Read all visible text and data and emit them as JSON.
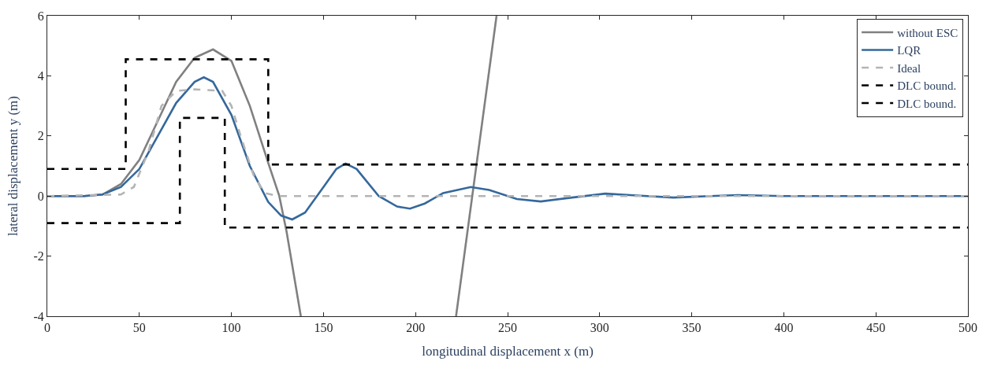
{
  "chart_data": {
    "type": "line",
    "xlabel": "longitudinal displacement x (m)",
    "ylabel": "lateral displacement y (m)",
    "xlim": [
      0,
      500
    ],
    "ylim": [
      -4,
      6
    ],
    "xticks": [
      0,
      50,
      100,
      150,
      200,
      250,
      300,
      350,
      400,
      450,
      500
    ],
    "yticks": [
      -4,
      -2,
      0,
      2,
      4,
      6
    ],
    "grid": false,
    "legend": "top right",
    "marker": "none",
    "series": [
      {
        "name": "without ESC",
        "color": "#808080",
        "line_style": "solid",
        "x": [
          0,
          20,
          30,
          40,
          50,
          60,
          70,
          80,
          90,
          100,
          106,
          110,
          120,
          126,
          130,
          137.7,
          180,
          222,
          244
        ],
        "values": [
          0,
          0,
          0.05,
          0.4,
          1.2,
          2.5,
          3.8,
          4.6,
          4.88,
          4.5,
          3.6,
          3.0,
          1.1,
          0,
          -1.2,
          -4,
          null,
          -4,
          6
        ]
      },
      {
        "name": "LQR",
        "color": "#35689b",
        "line_style": "solid",
        "x": [
          0,
          20,
          30,
          40,
          50,
          60,
          70,
          80,
          85,
          90,
          100,
          110,
          120,
          127,
          133,
          140,
          150,
          157,
          162,
          168,
          180,
          190,
          197,
          205,
          215,
          230,
          240,
          255,
          268,
          285,
          303,
          320,
          340,
          360,
          375,
          400,
          500
        ],
        "values": [
          0,
          0,
          0.05,
          0.3,
          0.9,
          2.0,
          3.1,
          3.8,
          3.95,
          3.8,
          2.7,
          1.0,
          -0.2,
          -0.65,
          -0.78,
          -0.55,
          0.3,
          0.9,
          1.08,
          0.9,
          0,
          -0.35,
          -0.42,
          -0.25,
          0.1,
          0.3,
          0.2,
          -0.1,
          -0.18,
          -0.05,
          0.08,
          0.02,
          -0.05,
          0,
          0.03,
          0,
          0
        ]
      },
      {
        "name": "Ideal",
        "color": "#b4b4b4",
        "line_style": "dashed",
        "x": [
          0,
          40,
          47,
          55,
          62,
          70,
          80,
          95,
          100,
          105,
          112,
          118,
          125,
          500
        ],
        "values": [
          0,
          0.05,
          0.3,
          1.5,
          3.0,
          3.5,
          3.55,
          3.5,
          3.0,
          2.0,
          0.7,
          0.1,
          0,
          0
        ]
      },
      {
        "name": "DLC bound.",
        "color": "#000000",
        "line_style": "dashed",
        "x": [
          0,
          42.6,
          42.6,
          120,
          120,
          500
        ],
        "values": [
          0.9,
          0.9,
          4.55,
          4.55,
          1.05,
          1.05
        ]
      },
      {
        "name": "DLC bound.",
        "color": "#000000",
        "line_style": "dashed",
        "x": [
          0,
          72,
          72,
          96.4,
          96.4,
          500
        ],
        "values": [
          -0.9,
          -0.9,
          2.6,
          2.6,
          -1.05,
          -1.05
        ]
      }
    ]
  }
}
